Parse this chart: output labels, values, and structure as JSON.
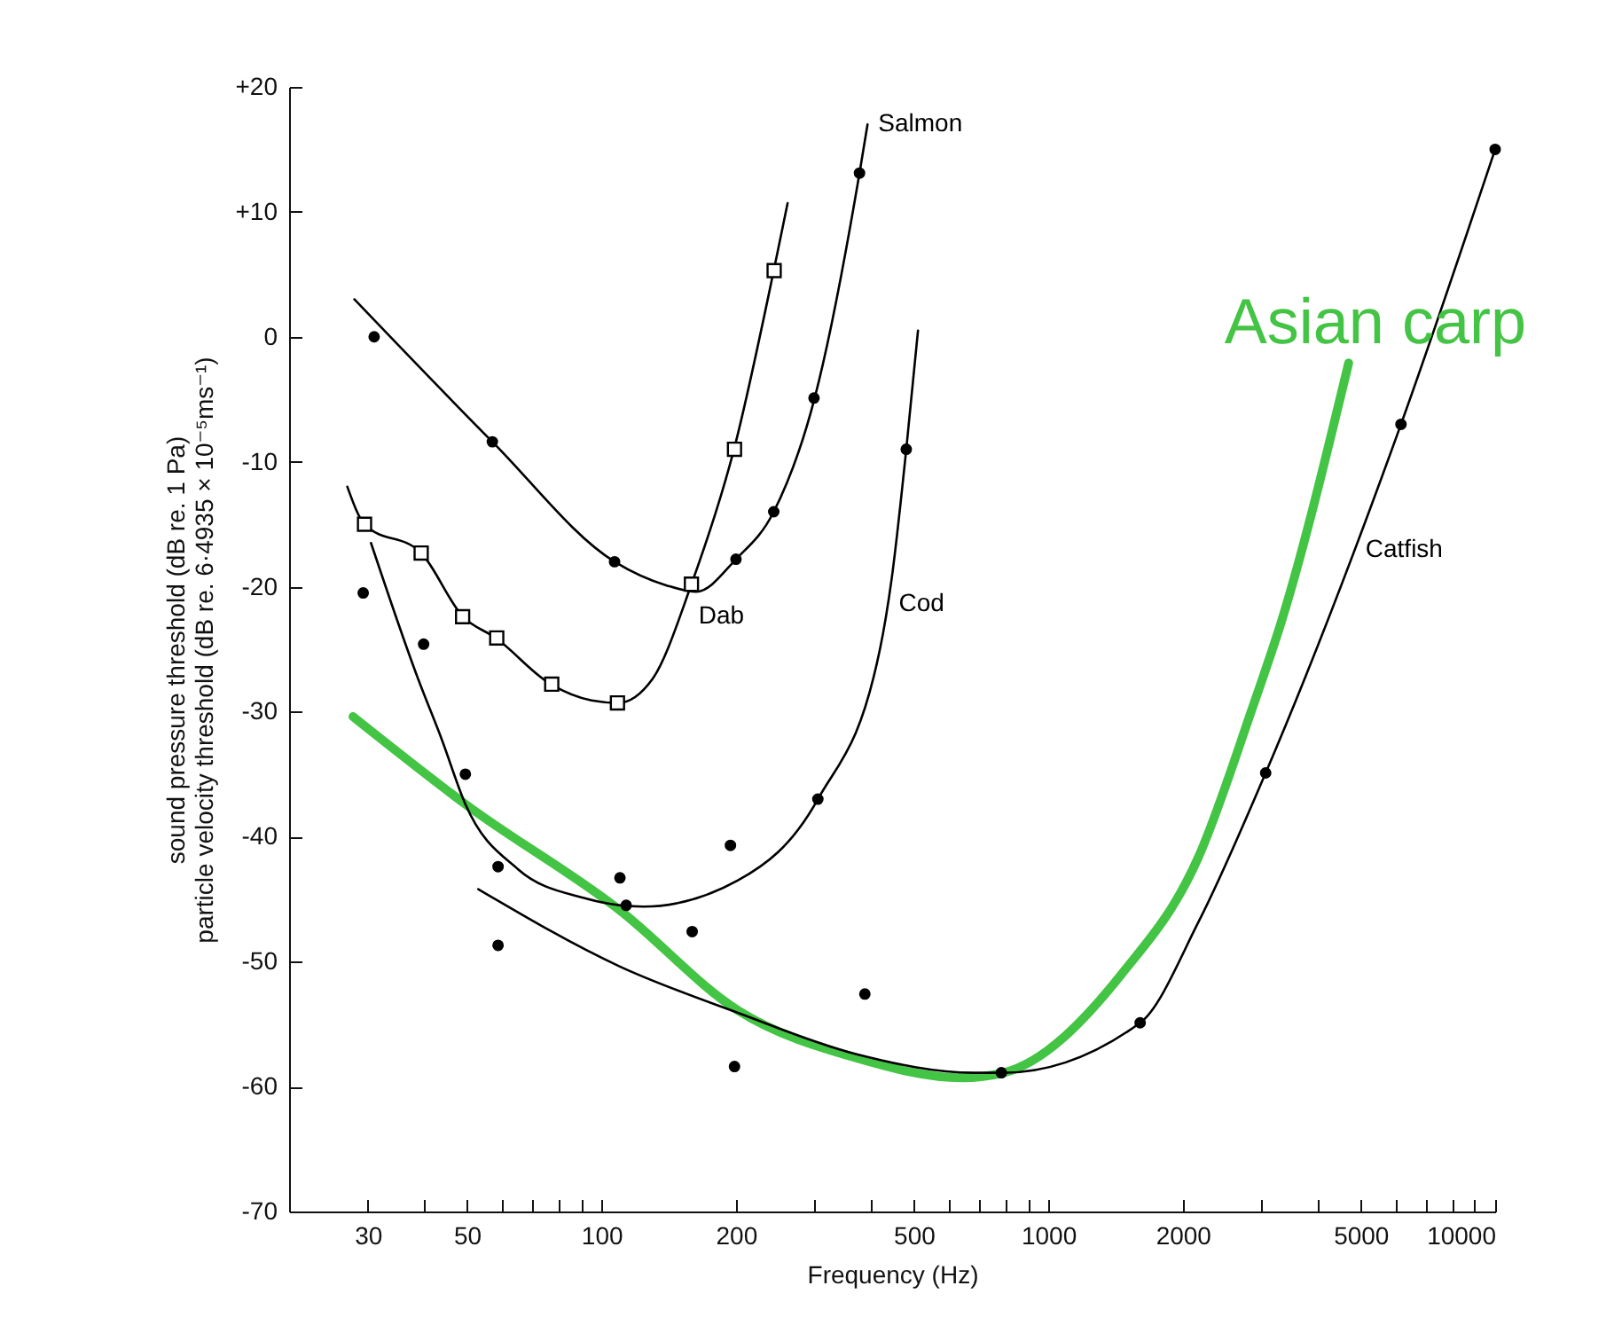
{
  "chart_data": {
    "type": "line",
    "xlabel": "Frequency (Hz)",
    "ylabel": "sound pressure threshold (dB re. 1 Pa)\nparticle velocity threshold (dB re. 6·4935 × 10⁻⁵ms⁻¹)",
    "log": "x",
    "xlim": [
      20,
      10000
    ],
    "ylim": [
      -70,
      20
    ],
    "xticks": [
      30,
      {
        "value": 40,
        "label": null
      },
      50,
      {
        "value": 60,
        "label": null
      },
      {
        "value": 70,
        "label": null
      },
      {
        "value": 80,
        "label": null
      },
      {
        "value": 90,
        "label": null
      },
      100,
      200,
      {
        "value": 300,
        "label": null
      },
      {
        "value": 400,
        "label": null
      },
      500,
      {
        "value": 600,
        "label": null
      },
      {
        "value": 700,
        "label": null
      },
      {
        "value": 800,
        "label": null
      },
      {
        "value": 900,
        "label": null
      },
      1000,
      2000,
      {
        "value": 3000,
        "label": null
      },
      {
        "value": 4000,
        "label": null
      },
      5000,
      {
        "value": 6000,
        "label": null
      },
      {
        "value": 7000,
        "label": null
      },
      {
        "value": 8000,
        "label": null
      },
      {
        "value": 9000,
        "label": null
      },
      {
        "value": 10000,
        "label": "10000"
      }
    ],
    "yticks": [
      {
        "value": 20,
        "label": "+20"
      },
      {
        "value": 10,
        "label": "+10"
      },
      0,
      -10,
      -20,
      -30,
      -40,
      -50,
      -60,
      -70
    ],
    "grid": false,
    "line_style": "solid",
    "series": [
      {
        "name": "Salmon",
        "marker": "none",
        "color": "#000000",
        "x": [
          28,
          57,
          107,
          140,
          163,
          200,
          243,
          300,
          378,
          394
        ],
        "values": [
          3,
          -8.4,
          -18,
          -19.9,
          -20.4,
          -17.8,
          -14,
          -4.9,
          13.1,
          17
        ]
      },
      {
        "name": "Dab",
        "marker": "none",
        "color": "#000000",
        "x": [
          27,
          29.5,
          39.5,
          49,
          58,
          77,
          95,
          109,
          130,
          159,
          198,
          243,
          261
        ],
        "values": [
          -12,
          -15,
          -17.3,
          -22.4,
          -24.1,
          -27.8,
          -29.1,
          -29.3,
          -27.4,
          -19.8,
          -9,
          5.3,
          10.7
        ]
      },
      {
        "name": "Cod",
        "marker": "none",
        "color": "#000000",
        "x": [
          30.5,
          38.9,
          43.9,
          49.6,
          65,
          91,
          124,
          202,
          305,
          420,
          446,
          481,
          511
        ],
        "values": [
          -16.5,
          -27.4,
          -32.2,
          -37.4,
          -42.6,
          -44.9,
          -45.6,
          -43.5,
          -37,
          -25,
          -19.4,
          -9,
          0.5
        ]
      },
      {
        "name": "Catfish",
        "marker": "none",
        "color": "#000000",
        "x": [
          53,
          110,
          202,
          371,
          682,
          794,
          1605,
          2170,
          3065,
          6155,
          10000
        ],
        "values": [
          -44.2,
          -50.4,
          -54.1,
          -57.4,
          -58.9,
          -58.9,
          -54.9,
          -46.8,
          -34.9,
          -7,
          15
        ]
      },
      {
        "name": "Asian carp",
        "marker": "none",
        "color": "#44c444",
        "x": [
          27.8,
          49.6,
          110,
          202,
          371,
          642,
          794,
          1459,
          2170,
          2856,
          3330,
          4700
        ],
        "values": [
          -30.4,
          -37.4,
          -45.9,
          -53.9,
          -57.7,
          -59.3,
          -58.9,
          -51,
          -41.6,
          -29.8,
          -22.7,
          -2.1
        ]
      },
      {
        "type": "scatter",
        "marker": "circle",
        "color": "#000000",
        "x": [
          31,
          57,
          107,
          200,
          243,
          299,
          378
        ],
        "values": [
          0,
          -8.4,
          -18,
          -17.8,
          -14,
          -4.9,
          13.1
        ]
      },
      {
        "type": "scatter",
        "marker": "square",
        "color": "#000000",
        "x": [
          29.5,
          39.5,
          48.9,
          58.3,
          77.4,
          108.6,
          159,
          198.5,
          243.5
        ],
        "values": [
          -15,
          -17.3,
          -22.4,
          -24.1,
          -27.8,
          -29.3,
          -19.8,
          -9,
          5.3
        ]
      },
      {
        "type": "scatter",
        "marker": "circle",
        "color": "#000000",
        "x": [
          29.3,
          40,
          49.6,
          58.7,
          110,
          159.6,
          194.4,
          305,
          481
        ],
        "values": [
          -20.5,
          -24.6,
          -35,
          -42.4,
          -43.3,
          -47.6,
          -40.7,
          -37,
          -9
        ]
      },
      {
        "type": "scatter",
        "marker": "circle",
        "color": "#000000",
        "x": [
          58.7,
          113.6,
          198.5,
          388.6
        ],
        "values": [
          -48.7,
          -45.5,
          -58.4,
          -52.6
        ]
      },
      {
        "type": "scatter",
        "marker": "circle",
        "color": "#000000",
        "x": [
          785,
          1605,
          3065,
          6155,
          10000
        ],
        "values": [
          -58.9,
          -54.9,
          -34.9,
          -7,
          15
        ]
      }
    ]
  }
}
